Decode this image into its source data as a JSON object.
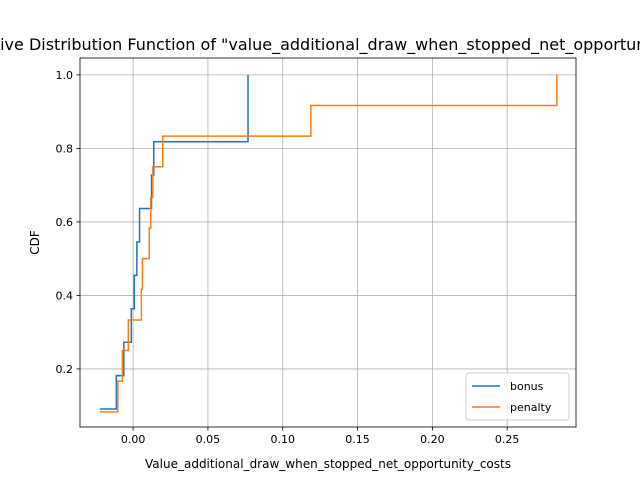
{
  "chart_data": {
    "type": "line",
    "step": "post",
    "title": "Cumulative Distribution Function of \"value_additional_draw_when_stopped_net_opportunity_costs\"",
    "xlabel": "Value_additional_draw_when_stopped_net_opportunity_costs",
    "ylabel": "CDF",
    "xlim": [
      -0.0355,
      0.296
    ],
    "ylim": [
      0.042,
      1.046
    ],
    "x_ticks": [
      0.0,
      0.05,
      0.1,
      0.15,
      0.2,
      0.25
    ],
    "x_tick_labels": [
      "0.00",
      "0.05",
      "0.10",
      "0.15",
      "0.20",
      "0.25"
    ],
    "y_ticks": [
      0.2,
      0.4,
      0.6,
      0.8,
      1.0
    ],
    "y_tick_labels": [
      "0.2",
      "0.4",
      "0.6",
      "0.8",
      "1.0"
    ],
    "grid": true,
    "legend_position": "lower-right",
    "series": [
      {
        "name": "bonus",
        "color": "#1f77b4",
        "x": [
          -0.0222,
          -0.0112,
          -0.0062,
          -0.0012,
          0.0008,
          0.0025,
          0.0043,
          0.0123,
          0.0138,
          0.0768
        ],
        "y": [
          0.0909,
          0.1818,
          0.2727,
          0.3636,
          0.4545,
          0.5455,
          0.6364,
          0.7273,
          0.8182,
          0.9091
        ],
        "end": [
          0.0768,
          1.0
        ]
      },
      {
        "name": "penalty",
        "color": "#ff7f0e",
        "x": [
          -0.0222,
          -0.0102,
          -0.0072,
          -0.0032,
          0.0055,
          0.0062,
          0.0108,
          0.0118,
          0.0132,
          0.0198,
          0.1188,
          0.2832
        ],
        "y": [
          0.0833,
          0.1667,
          0.25,
          0.3333,
          0.4167,
          0.5,
          0.5833,
          0.6667,
          0.75,
          0.8333,
          0.9167,
          0.9167
        ],
        "end": [
          0.2832,
          1.0
        ]
      }
    ]
  }
}
